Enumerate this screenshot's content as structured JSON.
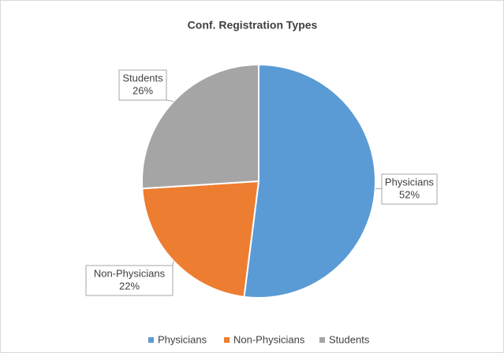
{
  "chart_data": {
    "type": "pie",
    "title": "Conf. Registration Types",
    "categories": [
      "Physicians",
      "Non-Physicians",
      "Students"
    ],
    "values": [
      52,
      22,
      26
    ],
    "value_labels": [
      "52%",
      "22%",
      "26%"
    ],
    "colors": [
      "#5b9bd5",
      "#ed7d31",
      "#a5a5a5"
    ],
    "legend": "bottom"
  }
}
